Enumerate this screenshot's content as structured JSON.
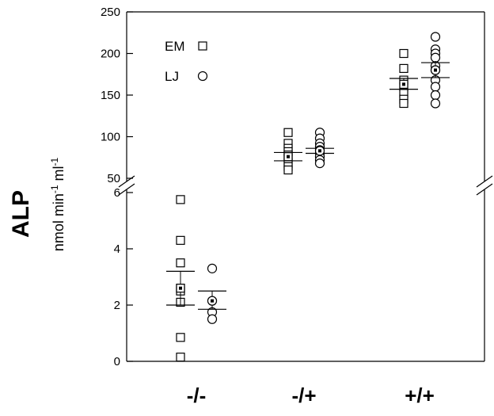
{
  "chart_data": {
    "type": "scatter",
    "title": "",
    "ylabel": "ALP",
    "ylabel_unit": "nmol min-1 ml-1",
    "ylabel_unit_parts": [
      "nmol min",
      "-1",
      " ml",
      "-1"
    ],
    "y_axis_broken": true,
    "ylim_lower": [
      0,
      6
    ],
    "ylim_upper": [
      50,
      250
    ],
    "yticks_lower": [
      "0",
      "2",
      "4",
      "6"
    ],
    "yticks_upper": [
      "50",
      "100",
      "150",
      "200",
      "250"
    ],
    "categories": [
      "-/-",
      "-/+",
      "+/+"
    ],
    "legend_position": "top-left",
    "series": [
      {
        "name": "EM",
        "marker": "square",
        "values": [
          [
            5.75,
            4.3,
            3.5,
            2.6,
            2.5,
            2.1,
            0.85,
            0.15
          ],
          [
            105,
            92,
            86,
            82,
            78,
            74,
            68,
            64,
            60
          ],
          [
            200,
            182,
            168,
            160,
            152,
            145,
            140
          ]
        ],
        "means": [
          2.6,
          76,
          163
        ],
        "error_upper": [
          3.2,
          81,
          170
        ],
        "error_lower": [
          2.0,
          71,
          157
        ]
      },
      {
        "name": "LJ",
        "marker": "circle",
        "values": [
          [
            3.3,
            2.15,
            1.75,
            1.5
          ],
          [
            105,
            98,
            92,
            88,
            84,
            80,
            76,
            72,
            68
          ],
          [
            220,
            205,
            200,
            195,
            185,
            180,
            168,
            160,
            150,
            140
          ]
        ],
        "means": [
          2.15,
          83,
          180
        ],
        "error_upper": [
          2.5,
          86,
          189
        ],
        "error_lower": [
          1.85,
          80,
          171
        ]
      }
    ]
  }
}
